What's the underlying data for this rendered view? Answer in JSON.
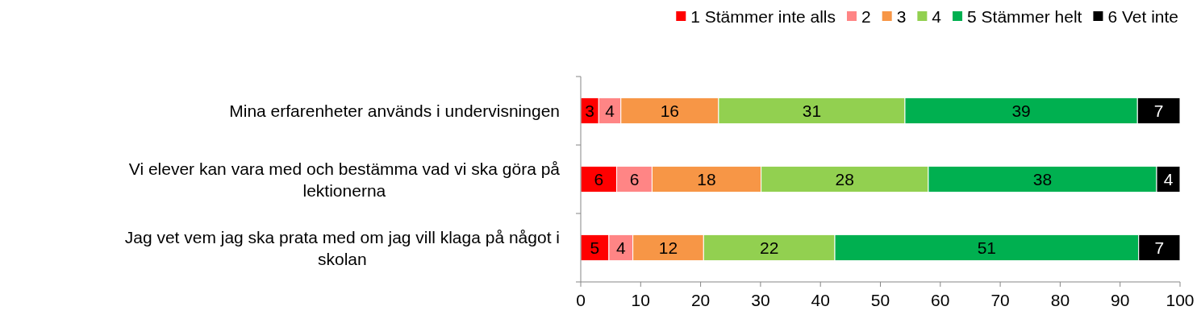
{
  "chart_data": {
    "type": "bar",
    "orientation": "horizontal",
    "stacked": true,
    "legend": "top right",
    "grid": false,
    "categories": [
      "Mina erfarenheter används i undervisningen",
      "Vi elever kan vara med och bestämma vad vi ska göra på lektionerna",
      "Jag vet vem jag ska prata med om jag vill klaga på något i skolan"
    ],
    "series": [
      {
        "name": "1 Stämmer inte alls",
        "color": "#ff0000",
        "values": [
          3,
          6,
          4.7
        ],
        "value_labels": [
          "3",
          "6",
          "5"
        ]
      },
      {
        "name": "2",
        "color": "#ff8585",
        "values": [
          3.7,
          5.9,
          4.0
        ],
        "value_labels": [
          "4",
          "6",
          "4"
        ]
      },
      {
        "name": "3",
        "color": "#f79646",
        "values": [
          16.3,
          18.2,
          11.8
        ],
        "value_labels": [
          "16",
          "18",
          "12"
        ]
      },
      {
        "name": "4",
        "color": "#92d050",
        "values": [
          31.1,
          27.9,
          21.9
        ],
        "value_labels": [
          "31",
          "28",
          "22"
        ]
      },
      {
        "name": "5 Stämmer helt",
        "color": "#00b050",
        "values": [
          38.8,
          38.1,
          50.7
        ],
        "value_labels": [
          "39",
          "38",
          "51"
        ]
      },
      {
        "name": "6 Vet inte",
        "color": "#000000",
        "values": [
          7.1,
          3.9,
          6.9
        ],
        "value_labels": [
          "7",
          "4",
          "7"
        ]
      }
    ],
    "xlim": [
      0,
      100
    ],
    "xticks": [
      0,
      10,
      20,
      30,
      40,
      50,
      60,
      70,
      80,
      90,
      100
    ]
  }
}
